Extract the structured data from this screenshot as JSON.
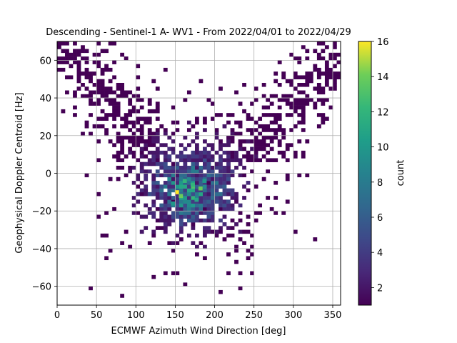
{
  "chart_data": {
    "type": "heatmap",
    "title": "Descending - Sentinel-1 A- WV1 - From 2022/04/01 to 2022/04/29",
    "xlabel": "ECMWF Azimuth Wind Direction [deg]",
    "ylabel": "Geophysical Doppler Centroid [Hz]",
    "xlim": [
      0,
      360
    ],
    "ylim": [
      -70,
      70
    ],
    "x_ticks": [
      "0",
      "50",
      "100",
      "150",
      "200",
      "250",
      "300",
      "350"
    ],
    "y_ticks": [
      "−60",
      "−40",
      "−20",
      "0",
      "20",
      "40",
      "60"
    ],
    "grid": true,
    "bin_width_x_deg": 5,
    "bin_width_y_hz": 2,
    "colorbar": {
      "label": "count",
      "range": [
        1,
        16
      ],
      "ticks": [
        "2",
        "4",
        "6",
        "8",
        "10",
        "12",
        "14",
        "16"
      ],
      "colormap": "viridis"
    },
    "density_description": "2D histogram: counts concentrated at azimuth 130-230 deg and doppler -25 to 10 Hz, peak about 16 near (155, -10); lower counts spread in V shape toward (0-50, 20-70) and (300-360, 20-70)",
    "peak": {
      "x": 155,
      "y": -10,
      "count": 16
    },
    "high_density_cells": [
      {
        "x": 152,
        "y": -10,
        "count": 16
      },
      {
        "x": 157,
        "y": -12,
        "count": 14
      },
      {
        "x": 182,
        "y": -8,
        "count": 14
      },
      {
        "x": 172,
        "y": -6,
        "count": 12
      },
      {
        "x": 162,
        "y": -4,
        "count": 12
      },
      {
        "x": 177,
        "y": -14,
        "count": 11
      },
      {
        "x": 147,
        "y": -16,
        "count": 10
      },
      {
        "x": 187,
        "y": -4,
        "count": 10
      }
    ]
  }
}
